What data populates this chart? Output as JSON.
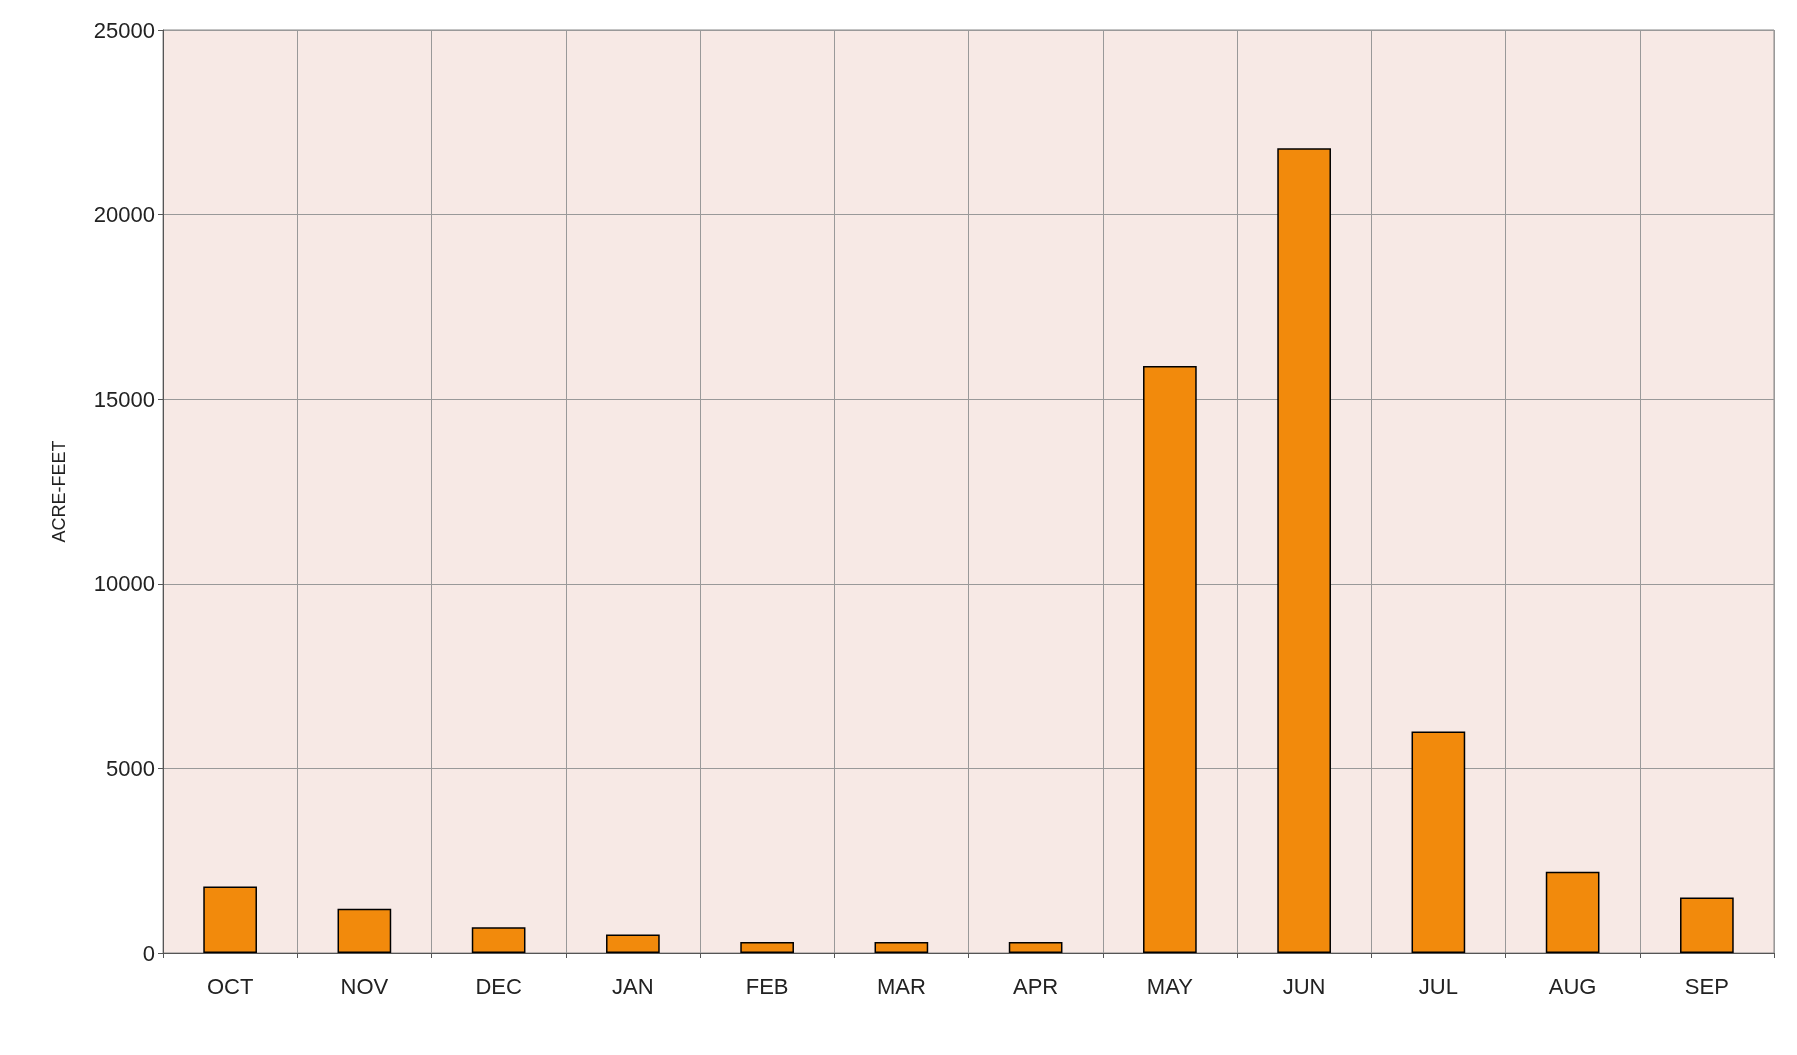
{
  "chart_data": {
    "type": "bar",
    "ylabel": "ACRE-FEET",
    "categories": [
      "OCT",
      "NOV",
      "DEC",
      "JAN",
      "FEB",
      "MAR",
      "APR",
      "MAY",
      "JUN",
      "JUL",
      "AUG",
      "SEP"
    ],
    "values": [
      1800,
      1200,
      700,
      500,
      300,
      300,
      300,
      15900,
      21800,
      6000,
      2200,
      1500
    ],
    "color": "#f28a0c",
    "ylim": [
      0,
      25000
    ],
    "yticks": [
      0,
      5000,
      10000,
      15000,
      20000,
      25000
    ],
    "grid": true
  }
}
